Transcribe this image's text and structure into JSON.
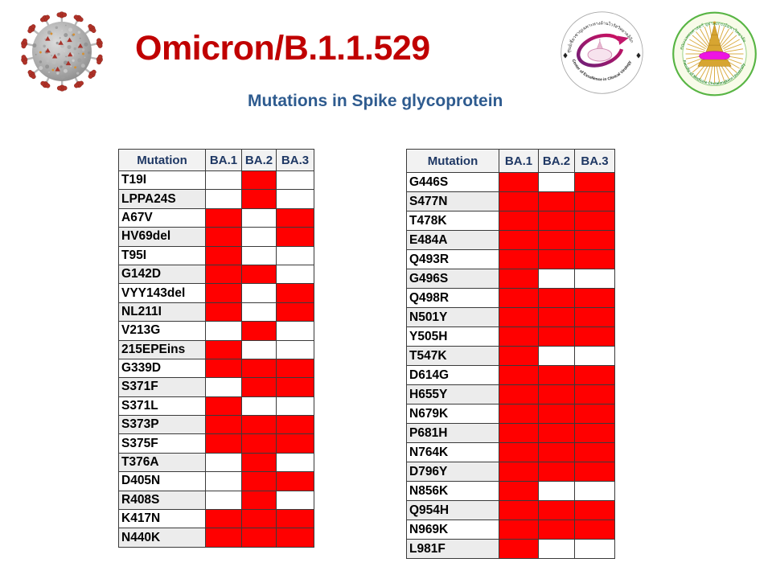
{
  "slide": {
    "title": "Omicron/B.1.1.529",
    "subtitle": "Mutations in Spike glycoprotein"
  },
  "logos": {
    "virology_center": {
      "top_text": "ศูนย์เชี่ยวชาญเฉพาะทางด้านไวรัสวิทยาคลินิก",
      "bottom_text": "Center of Excellence in Clinical Virology"
    },
    "faculty": {
      "top_text": "คณะแพทยศาสตร์ จุฬาลงกรณ์มหาวิทยาลัย",
      "bottom_text": "Faculty of Medicine Chulalongkorn University"
    }
  },
  "tables": [
    {
      "columns": [
        "Mutation",
        "BA.1",
        "BA.2",
        "BA.3"
      ],
      "rows": [
        {
          "mutation": "T19I",
          "cells": [
            0,
            1,
            0
          ]
        },
        {
          "mutation": "LPPA24S",
          "cells": [
            0,
            1,
            0
          ]
        },
        {
          "mutation": "A67V",
          "cells": [
            1,
            0,
            1
          ]
        },
        {
          "mutation": "HV69del",
          "cells": [
            1,
            0,
            1
          ]
        },
        {
          "mutation": "T95I",
          "cells": [
            1,
            0,
            0
          ]
        },
        {
          "mutation": "G142D",
          "cells": [
            1,
            1,
            0
          ]
        },
        {
          "mutation": "VYY143del",
          "cells": [
            1,
            0,
            1
          ]
        },
        {
          "mutation": "NL211I",
          "cells": [
            1,
            0,
            1
          ]
        },
        {
          "mutation": "V213G",
          "cells": [
            0,
            1,
            0
          ]
        },
        {
          "mutation": "215EPEins",
          "cells": [
            1,
            0,
            0
          ]
        },
        {
          "mutation": "G339D",
          "cells": [
            1,
            1,
            1
          ]
        },
        {
          "mutation": "S371F",
          "cells": [
            0,
            1,
            1
          ]
        },
        {
          "mutation": "S371L",
          "cells": [
            1,
            0,
            0
          ]
        },
        {
          "mutation": "S373P",
          "cells": [
            1,
            1,
            1
          ]
        },
        {
          "mutation": "S375F",
          "cells": [
            1,
            1,
            1
          ]
        },
        {
          "mutation": "T376A",
          "cells": [
            0,
            1,
            0
          ]
        },
        {
          "mutation": "D405N",
          "cells": [
            0,
            1,
            1
          ]
        },
        {
          "mutation": "R408S",
          "cells": [
            0,
            1,
            0
          ]
        },
        {
          "mutation": "K417N",
          "cells": [
            1,
            1,
            1
          ]
        },
        {
          "mutation": "N440K",
          "cells": [
            1,
            1,
            1
          ]
        }
      ]
    },
    {
      "columns": [
        "Mutation",
        "BA.1",
        "BA.2",
        "BA.3"
      ],
      "rows": [
        {
          "mutation": "G446S",
          "cells": [
            1,
            0,
            1
          ]
        },
        {
          "mutation": "S477N",
          "cells": [
            1,
            1,
            1
          ]
        },
        {
          "mutation": "T478K",
          "cells": [
            1,
            1,
            1
          ]
        },
        {
          "mutation": "E484A",
          "cells": [
            1,
            1,
            1
          ]
        },
        {
          "mutation": "Q493R",
          "cells": [
            1,
            1,
            1
          ]
        },
        {
          "mutation": "G496S",
          "cells": [
            1,
            0,
            0
          ]
        },
        {
          "mutation": "Q498R",
          "cells": [
            1,
            1,
            1
          ]
        },
        {
          "mutation": "N501Y",
          "cells": [
            1,
            1,
            1
          ]
        },
        {
          "mutation": "Y505H",
          "cells": [
            1,
            1,
            1
          ]
        },
        {
          "mutation": "T547K",
          "cells": [
            1,
            0,
            0
          ]
        },
        {
          "mutation": "D614G",
          "cells": [
            1,
            1,
            1
          ]
        },
        {
          "mutation": "H655Y",
          "cells": [
            1,
            1,
            1
          ]
        },
        {
          "mutation": "N679K",
          "cells": [
            1,
            1,
            1
          ]
        },
        {
          "mutation": "P681H",
          "cells": [
            1,
            1,
            1
          ]
        },
        {
          "mutation": "N764K",
          "cells": [
            1,
            1,
            1
          ]
        },
        {
          "mutation": "D796Y",
          "cells": [
            1,
            1,
            1
          ]
        },
        {
          "mutation": "N856K",
          "cells": [
            1,
            0,
            0
          ]
        },
        {
          "mutation": "Q954H",
          "cells": [
            1,
            1,
            1
          ]
        },
        {
          "mutation": "N969K",
          "cells": [
            1,
            1,
            1
          ]
        },
        {
          "mutation": "L981F",
          "cells": [
            1,
            0,
            0
          ]
        }
      ]
    }
  ],
  "colors": {
    "present_cell": "#FF0000",
    "title": "#C00000",
    "subtitle": "#2E5B8F",
    "header_text": "#1F3864"
  }
}
